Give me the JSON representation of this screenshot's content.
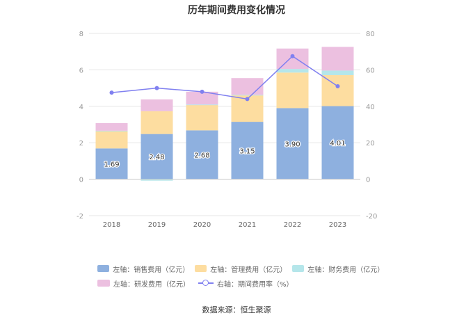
{
  "page_title": "历年期间费用变化情况",
  "source": "数据来源：恒生聚源",
  "colors": {
    "sales": "#8eb0df",
    "admin": "#fddda0",
    "finance": "#b5e6ea",
    "rnd": "#ecc0e0",
    "rate": "#8080f0",
    "grid": "#e6e6e6",
    "axis_text": "#999999"
  },
  "chart_data": {
    "type": "bar",
    "title": "历年期间费用变化情况",
    "categories": [
      "2018",
      "2019",
      "2020",
      "2021",
      "2022",
      "2023"
    ],
    "stacked": true,
    "y_left": {
      "min": -2,
      "max": 8,
      "ticks": [
        -2,
        0,
        2,
        4,
        6,
        8
      ]
    },
    "y_right": {
      "min": -20,
      "max": 80,
      "ticks": [
        -20,
        0,
        20,
        40,
        60,
        80
      ]
    },
    "grid": true,
    "legend_position": "bottom",
    "series": [
      {
        "key": "sales",
        "name": "左轴：销售费用（亿元）",
        "axis": "left",
        "type": "bar",
        "values": [
          1.69,
          2.48,
          2.68,
          3.15,
          3.9,
          4.01
        ],
        "labels": [
          "1.69",
          "2.48",
          "2.68",
          "3.15",
          "3.90",
          "4.01"
        ]
      },
      {
        "key": "admin",
        "name": "左轴：管理费用（亿元）",
        "axis": "left",
        "type": "bar",
        "values": [
          0.95,
          1.25,
          1.4,
          1.45,
          1.95,
          1.7
        ]
      },
      {
        "key": "finance",
        "name": "左轴：财务费用（亿元）",
        "axis": "left",
        "type": "bar",
        "values": [
          0.02,
          -0.08,
          0.02,
          0.03,
          0.2,
          0.25
        ]
      },
      {
        "key": "rnd",
        "name": "左轴：研发费用（亿元）",
        "axis": "left",
        "type": "bar",
        "values": [
          0.42,
          0.65,
          0.7,
          0.92,
          1.12,
          1.3
        ]
      },
      {
        "key": "rate",
        "name": "右轴：期间费用率（%）",
        "axis": "right",
        "type": "line",
        "values": [
          47.5,
          50.0,
          48.0,
          44.0,
          67.5,
          51.0
        ]
      }
    ]
  }
}
